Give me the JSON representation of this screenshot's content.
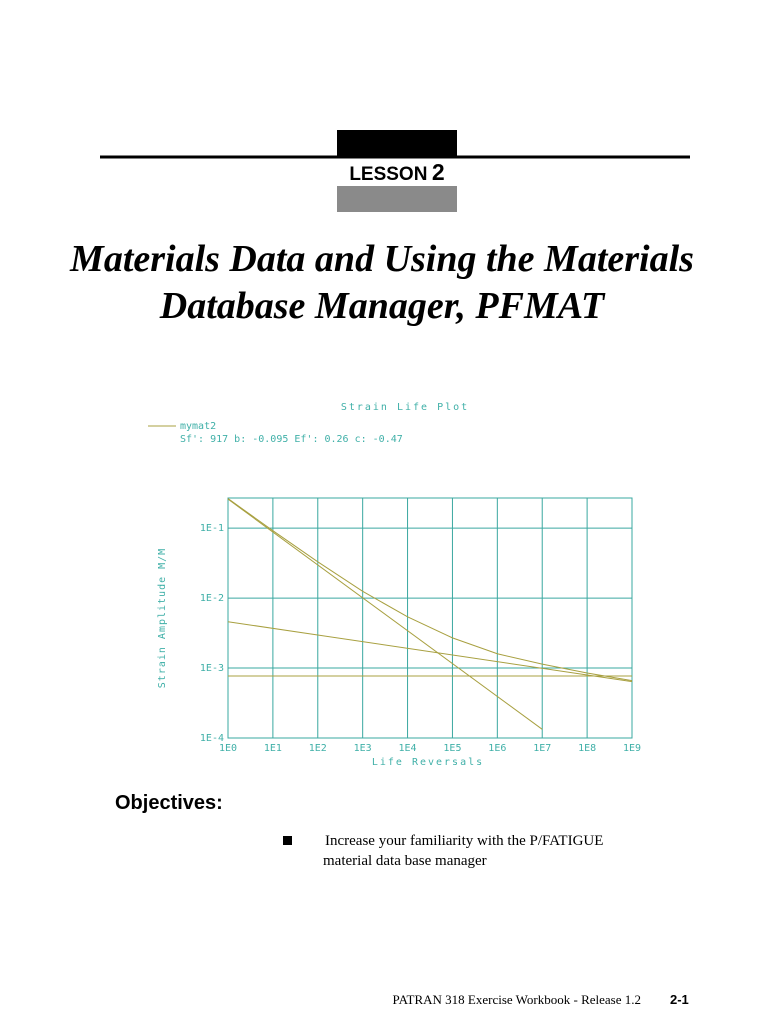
{
  "header": {
    "lesson_label": "LESSON",
    "lesson_number": "2"
  },
  "title": [
    "Materials Data and Using the Materials",
    "Database Manager, PFMAT"
  ],
  "chart_data": {
    "type": "line",
    "title": "Strain Life Plot",
    "subtitle": "Sf': 917  b: -0.095  Ef': 0.26  c: -0.47",
    "x_label": "Life Reversals",
    "y_label": "Strain Amplitude M/M",
    "xscale": "log",
    "yscale": "log",
    "grid": true,
    "xlim": [
      1,
      1000000000
    ],
    "ylim": [
      0.0001,
      0.27
    ],
    "xticks": [
      {
        "value": 1,
        "label": "1E0"
      },
      {
        "value": 10,
        "label": "1E1"
      },
      {
        "value": 100,
        "label": "1E2"
      },
      {
        "value": 1000,
        "label": "1E3"
      },
      {
        "value": 10000,
        "label": "1E4"
      },
      {
        "value": 100000,
        "label": "1E5"
      },
      {
        "value": 1000000,
        "label": "1E6"
      },
      {
        "value": 10000000,
        "label": "1E7"
      },
      {
        "value": 100000000,
        "label": "1E8"
      },
      {
        "value": 1000000000,
        "label": "1E9"
      }
    ],
    "yticks": [
      {
        "value": 0.1,
        "label": "1E-1"
      },
      {
        "value": 0.01,
        "label": "1E-2"
      },
      {
        "value": 0.001,
        "label": "1E-3"
      },
      {
        "value": 0.0001,
        "label": "1E-4"
      }
    ],
    "series": [
      {
        "name": "mymat2",
        "color": "#a8a040",
        "x": [
          1,
          10,
          100,
          1000,
          10000,
          100000,
          1000000,
          10000000,
          100000000,
          1000000000
        ],
        "values": [
          0.265,
          0.092,
          0.033,
          0.0125,
          0.0054,
          0.0027,
          0.0016,
          0.00114,
          0.00085,
          0.00066
        ]
      },
      {
        "color": "#a8a040",
        "x": [
          1,
          1000000000
        ],
        "values": [
          0.0046,
          0.00064
        ]
      },
      {
        "color": "#a8a040",
        "x": [
          1,
          10000000
        ],
        "values": [
          0.26,
          0.000133
        ]
      },
      {
        "color": "#a8a040",
        "x": [
          1,
          1000000000
        ],
        "values": [
          0.00077,
          0.00077
        ]
      }
    ]
  },
  "objectives": {
    "heading": "Objectives:",
    "items": [
      [
        "Increase your familiarity with the P/FATIGUE",
        "material data base manager"
      ]
    ]
  },
  "footer": {
    "text": "PATRAN 318 Exercise Workbook - Release 1.2",
    "page": "2-1"
  }
}
